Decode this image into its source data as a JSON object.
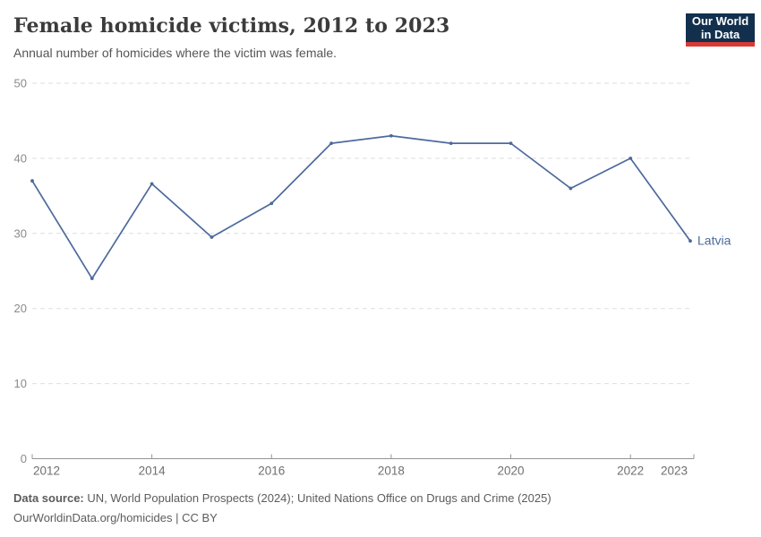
{
  "header": {
    "title": "Female homicide victims, 2012 to 2023",
    "subtitle": "Annual number of homicides where the victim was female.",
    "logo": {
      "line1": "Our World",
      "line2": "in Data",
      "bg_color": "#12304e",
      "bar_color": "#d93a34"
    }
  },
  "chart_data": {
    "type": "line",
    "title": "Female homicide victims, 2012 to 2023",
    "x": [
      2012,
      2013,
      2014,
      2015,
      2016,
      2017,
      2018,
      2019,
      2020,
      2021,
      2022,
      2023
    ],
    "series": [
      {
        "name": "Latvia",
        "color": "#4c6a9c",
        "values": [
          37,
          24,
          36.6,
          29.5,
          34,
          42,
          43,
          42,
          42,
          36,
          40,
          29
        ]
      }
    ],
    "xlabel": "",
    "ylabel": "",
    "ylim": [
      0,
      50
    ],
    "yticks": [
      0,
      10,
      20,
      30,
      40,
      50
    ],
    "xtick_labels": [
      2012,
      2014,
      2016,
      2018,
      2020,
      2022,
      2023
    ],
    "grid": "horizontal-dashed",
    "legend_position": "end-of-line-label",
    "gridline_color": "#dedede",
    "axis_color": "#949494"
  },
  "footer": {
    "datasource_label": "Data source:",
    "datasource_text": " UN, World Population Prospects (2024); United Nations Office on Drugs and Crime (2025)",
    "license_line": "OurWorldinData.org/homicides | CC BY"
  }
}
